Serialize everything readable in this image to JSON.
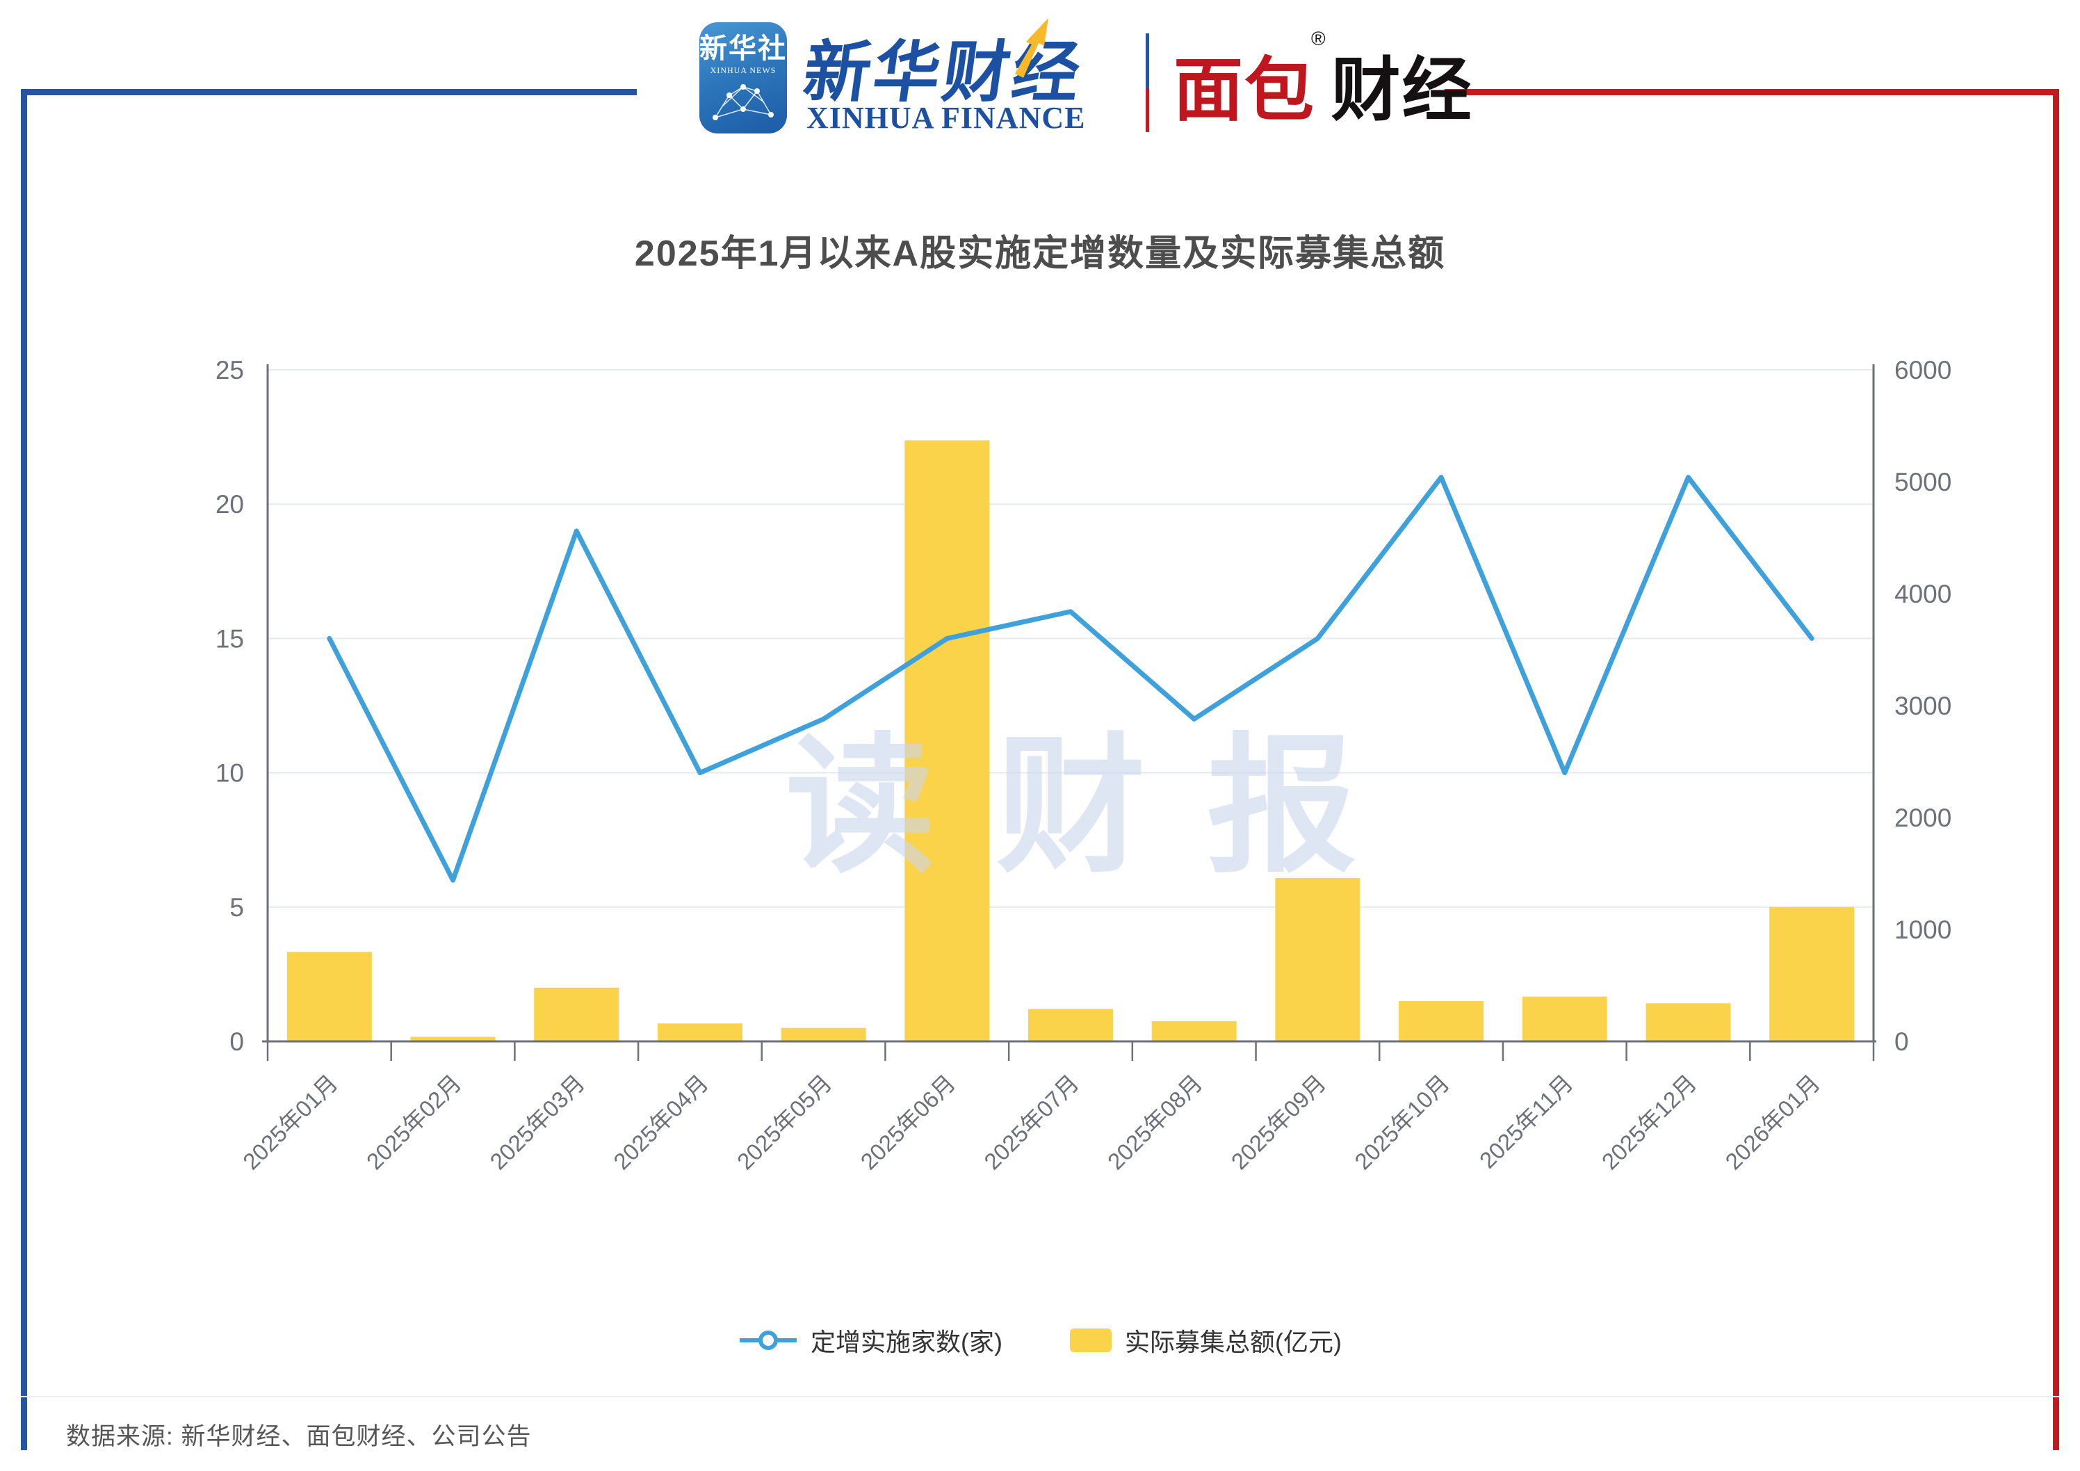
{
  "page": {
    "background": "#FFFFFF",
    "frame_blue": "#27549E",
    "frame_red": "#BF1B21"
  },
  "header": {
    "xinhua_icon": {
      "cn": "新华社",
      "en": "XINHUA NEWS"
    },
    "xinhua_finance": {
      "cn": "新华财经",
      "en": "XINHUA FINANCE"
    },
    "mianbao_finance": {
      "cn_red": "面包",
      "cn_black": "财经",
      "reg_mark": "®"
    }
  },
  "chart_data": {
    "type": "combo-line-bar",
    "title": "2025年1月以来A股实施定增数量及实际募集总额",
    "categories": [
      "2025年01月",
      "2025年02月",
      "2025年03月",
      "2025年04月",
      "2025年05月",
      "2025年06月",
      "2025年07月",
      "2025年08月",
      "2025年09月",
      "2025年10月",
      "2025年11月",
      "2025年12月",
      "2026年01月"
    ],
    "series": [
      {
        "name": "定增实施家数(家)",
        "type": "line",
        "y_axis": "left",
        "color": "#3EA1DC",
        "marker": "hollow-circle",
        "values": [
          15,
          6,
          19,
          10,
          12,
          15,
          16,
          12,
          15,
          21,
          10,
          21,
          15
        ]
      },
      {
        "name": "实际募集总额(亿元)",
        "type": "bar",
        "y_axis": "right",
        "color": "#FBD34B",
        "values": [
          800,
          40,
          480,
          160,
          120,
          5370,
          290,
          180,
          1460,
          360,
          400,
          340,
          1200
        ]
      }
    ],
    "left_axis": {
      "min": 0,
      "max": 25,
      "ticks": [
        0,
        5,
        10,
        15,
        20,
        25
      ]
    },
    "right_axis": {
      "min": 0,
      "max": 6000,
      "ticks": [
        0,
        1000,
        2000,
        3000,
        4000,
        5000,
        6000
      ]
    },
    "grid": true,
    "legend_position": "bottom",
    "style": {
      "axis_label_color": "#6E7079",
      "axis_line_color": "#6E7079",
      "grid_color": "#E4E9F2",
      "title_color": "#4D4D4D",
      "legend_text_color": "#333333"
    }
  },
  "watermark": {
    "text": "读财报",
    "color": "rgba(203,214,236,0.62)"
  },
  "footer": {
    "source": "数据来源: 新华财经、面包财经、公司公告"
  }
}
